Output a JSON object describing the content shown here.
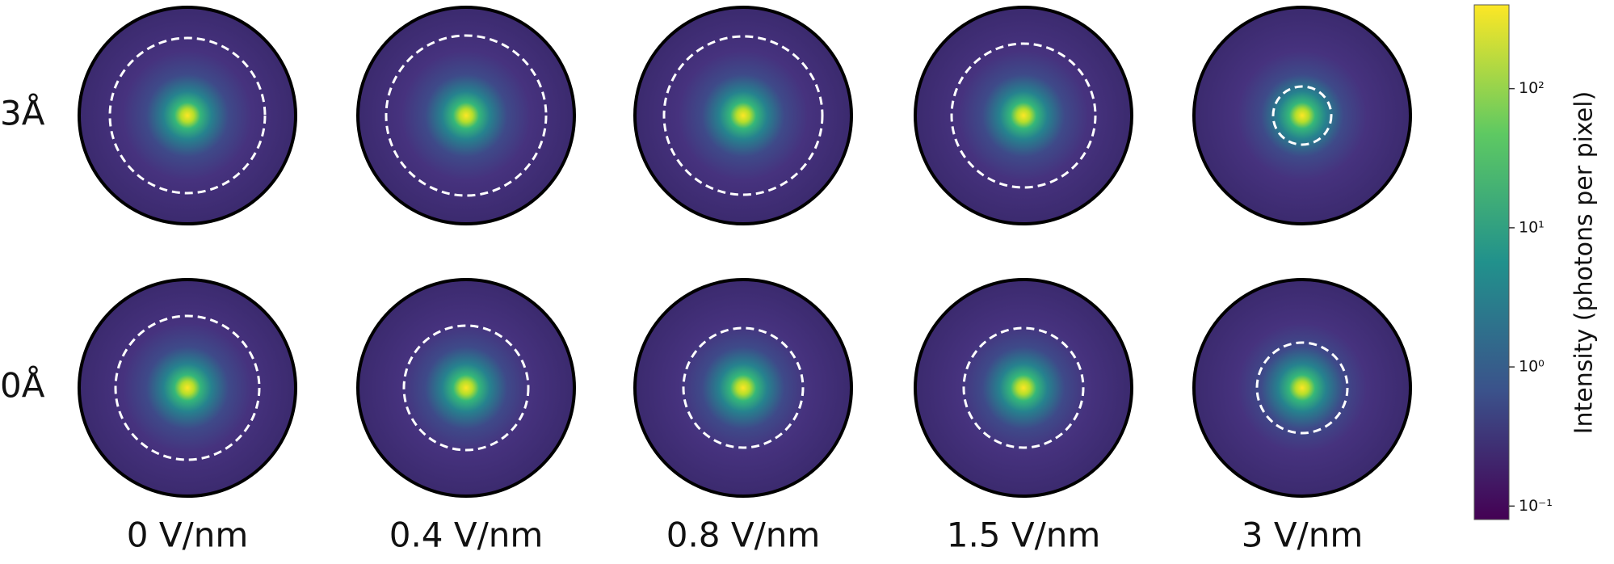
{
  "chart_data": {
    "type": "image-grid",
    "rows": [
      "3Å",
      "0Å"
    ],
    "columns": [
      "0 V/nm",
      "0.4 V/nm",
      "0.8 V/nm",
      "1.5 V/nm",
      "3 V/nm"
    ],
    "colorbar": {
      "label": "Intensity (photons per pixel)",
      "log": true,
      "ylim": [
        0.08,
        400
      ],
      "yticks": [
        {
          "value": 0.1,
          "label": "10⁻¹"
        },
        {
          "value": 1,
          "label": "10⁰"
        },
        {
          "value": 10,
          "label": "10¹"
        },
        {
          "value": 100,
          "label": "10²"
        }
      ],
      "colormap": "viridis"
    }
  }
}
